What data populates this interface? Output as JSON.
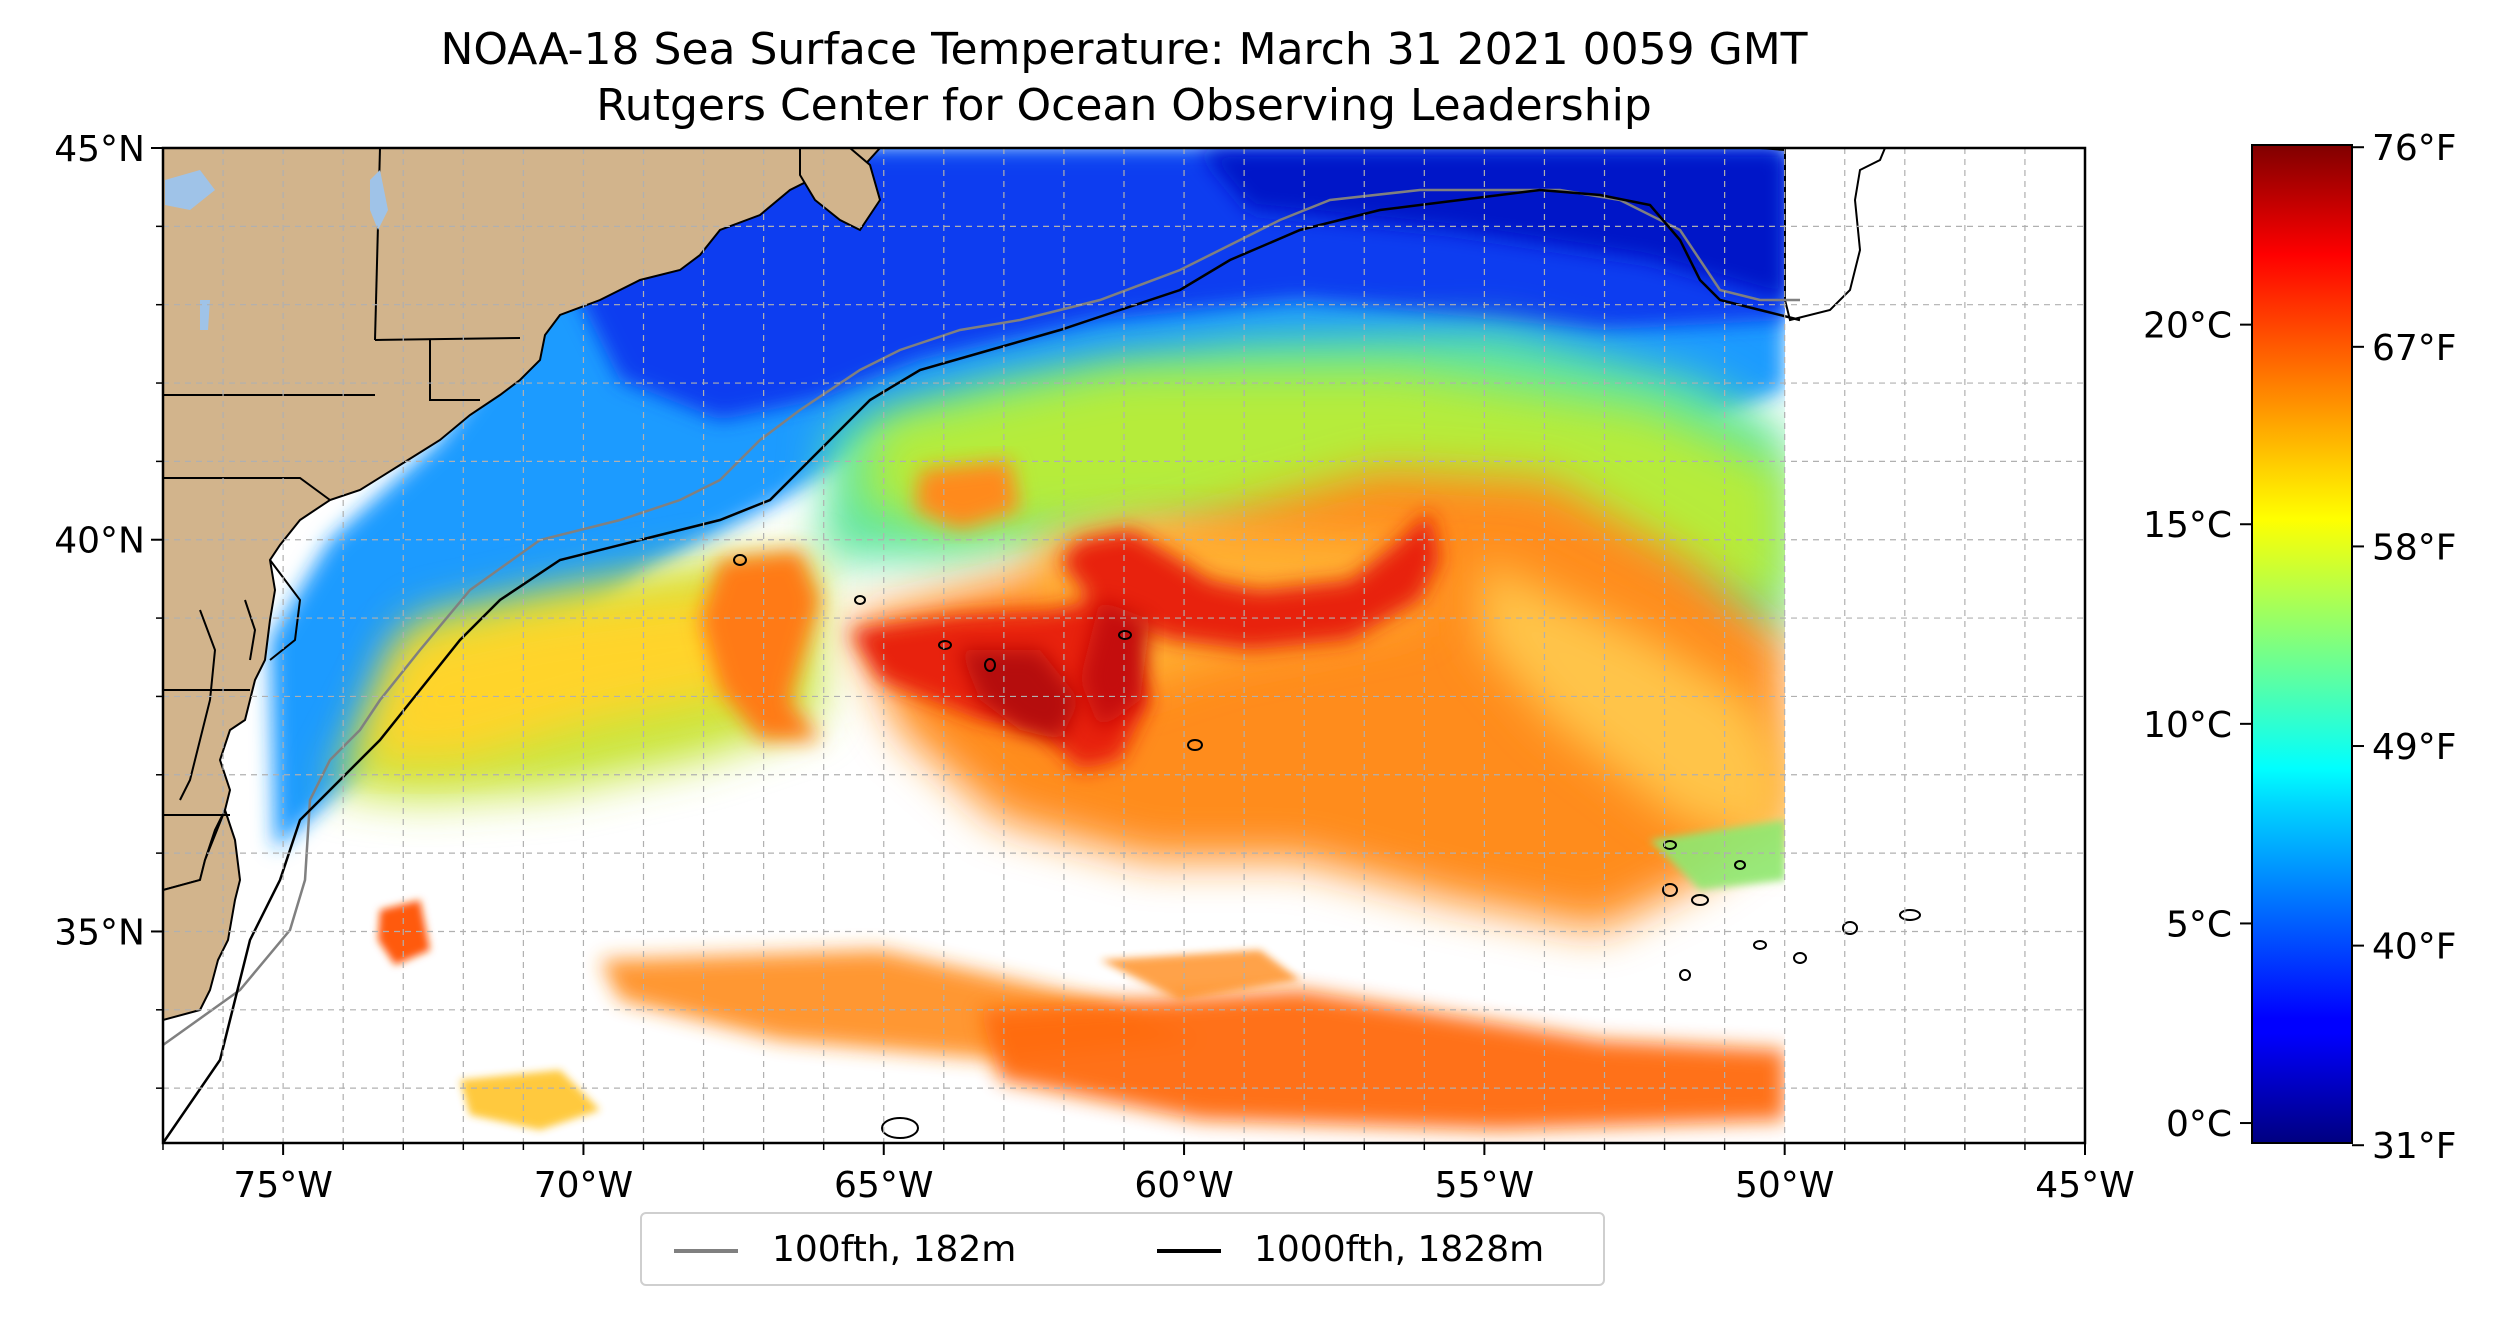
{
  "title": {
    "line1": "NOAA-18 Sea Surface Temperature: March 31 2021 0059 GMT",
    "line2": "Rutgers Center for Ocean Observing Leadership"
  },
  "map": {
    "lon_range": [
      -77,
      -45
    ],
    "lat_range": [
      32.3,
      45
    ],
    "gridlines": true,
    "lon_ticks": [
      {
        "value": -75,
        "label": "75°W"
      },
      {
        "value": -70,
        "label": "70°W"
      },
      {
        "value": -65,
        "label": "65°W"
      },
      {
        "value": -60,
        "label": "60°W"
      },
      {
        "value": -55,
        "label": "55°W"
      },
      {
        "value": -50,
        "label": "50°W"
      },
      {
        "value": -45,
        "label": "45°W"
      }
    ],
    "lat_ticks": [
      {
        "value": 45,
        "label": "45°N"
      },
      {
        "value": 40,
        "label": "40°N"
      },
      {
        "value": 35,
        "label": "35°N"
      }
    ],
    "colors": {
      "land": "#d2b48c",
      "lakes": "#9fc3e8",
      "no_data": "#ffffff",
      "grid": "#b0b0b0",
      "isobath_100fth": "#808080",
      "isobath_1000fth": "#000000"
    }
  },
  "legend": {
    "items": [
      {
        "label": "100fth, 182m",
        "color": "#808080"
      },
      {
        "label": "1000fth, 1828m",
        "color": "#000000"
      }
    ]
  },
  "colorbar": {
    "colormap": "jet",
    "range_c": [
      -0.5,
      24.5
    ],
    "celsius_ticks": [
      {
        "value": 0,
        "label": "0°C"
      },
      {
        "value": 5,
        "label": "5°C"
      },
      {
        "value": 10,
        "label": "10°C"
      },
      {
        "value": 15,
        "label": "15°C"
      },
      {
        "value": 20,
        "label": "20°C"
      }
    ],
    "fahrenheit_ticks": [
      {
        "value": 31,
        "label": "31°F"
      },
      {
        "value": 40,
        "label": "40°F"
      },
      {
        "value": 49,
        "label": "49°F"
      },
      {
        "value": 58,
        "label": "58°F"
      },
      {
        "value": 67,
        "label": "67°F"
      },
      {
        "value": 76,
        "label": "76°F"
      }
    ]
  }
}
